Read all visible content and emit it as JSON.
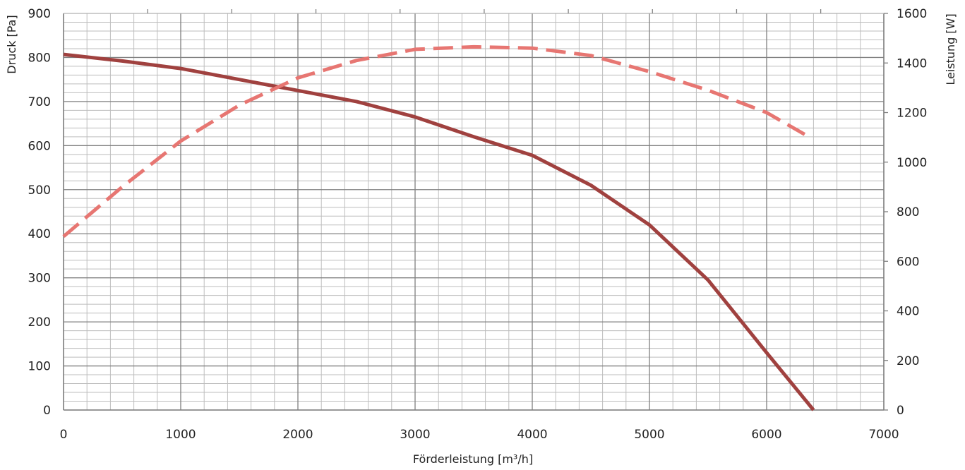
{
  "chart_data": {
    "type": "line",
    "xlabel": "Förderleistung [m³/h]",
    "ylabel_left": "Druck [Pa]",
    "ylabel_right": "Leistung [W]",
    "xlim": [
      0,
      7000
    ],
    "ylim_left": [
      0,
      900
    ],
    "ylim_right": [
      0,
      1600
    ],
    "xticks": [
      "0",
      "1000",
      "2000",
      "3000",
      "4000",
      "5000",
      "6000",
      "7000"
    ],
    "yticks_left": [
      "0",
      "100",
      "200",
      "300",
      "400",
      "500",
      "600",
      "700",
      "800",
      "900"
    ],
    "yticks_right": [
      "0",
      "200",
      "400",
      "600",
      "800",
      "1000",
      "1200",
      "1400",
      "1600"
    ],
    "grid": true,
    "series": [
      {
        "axis": "left",
        "style": "solid",
        "color": "#a0413f",
        "points": [
          [
            0,
            807
          ],
          [
            500,
            792
          ],
          [
            1000,
            775
          ],
          [
            1500,
            750
          ],
          [
            2000,
            725
          ],
          [
            2500,
            700
          ],
          [
            3000,
            665
          ],
          [
            3500,
            620
          ],
          [
            4000,
            578
          ],
          [
            4500,
            510
          ],
          [
            5000,
            420
          ],
          [
            5500,
            295
          ],
          [
            6000,
            130
          ],
          [
            6400,
            0
          ]
        ]
      },
      {
        "axis": "right",
        "style": "dashed",
        "color": "#e77672",
        "points": [
          [
            0,
            700
          ],
          [
            500,
            900
          ],
          [
            1000,
            1085
          ],
          [
            1500,
            1230
          ],
          [
            2000,
            1340
          ],
          [
            2500,
            1410
          ],
          [
            3000,
            1455
          ],
          [
            3500,
            1465
          ],
          [
            4000,
            1460
          ],
          [
            4500,
            1430
          ],
          [
            5000,
            1365
          ],
          [
            5500,
            1290
          ],
          [
            6000,
            1200
          ],
          [
            6350,
            1105
          ]
        ]
      }
    ]
  }
}
